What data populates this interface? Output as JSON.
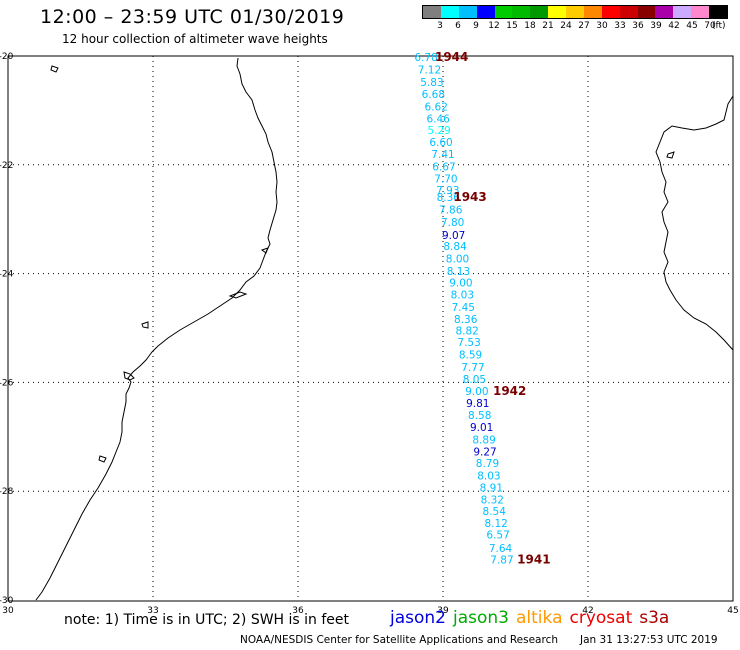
{
  "header": {
    "title": "12:00 – 23:59 UTC 01/30/2019",
    "subtitle": "12 hour collection of altimeter wave heights"
  },
  "colorbar": {
    "colors": [
      "#7f7f7f",
      "#00ffff",
      "#00bfff",
      "#0000ff",
      "#00cc00",
      "#00bb00",
      "#009900",
      "#ffff00",
      "#ffcc00",
      "#ff8800",
      "#ff0000",
      "#cc0000",
      "#880000",
      "#aa00aa",
      "#ccaaff",
      "#ff88cc",
      "#000000"
    ],
    "labels": [
      "3",
      "6",
      "9",
      "12",
      "15",
      "18",
      "21",
      "24",
      "27",
      "30",
      "33",
      "36",
      "39",
      "42",
      "45",
      "70"
    ],
    "unit": "(ft)"
  },
  "map": {
    "lon_ticks": [
      "30",
      "33",
      "36",
      "39",
      "42",
      "45"
    ],
    "lat_ticks": [
      "-20",
      "-22",
      "-24",
      "-26",
      "-28",
      "-30"
    ]
  },
  "chart_data": {
    "type": "scatter",
    "x_range": [
      30,
      45
    ],
    "y_range": [
      -30,
      -20
    ],
    "swh_points": [
      {
        "lon": 38.65,
        "lat": -20.02,
        "v": "6.78",
        "color": "#00bfff"
      },
      {
        "lon": 38.72,
        "lat": -20.25,
        "v": "7.12",
        "color": "#00bfff"
      },
      {
        "lon": 38.77,
        "lat": -20.48,
        "v": "5.83",
        "color": "#00bfff"
      },
      {
        "lon": 38.8,
        "lat": -20.7,
        "v": "6.68",
        "color": "#00bfff"
      },
      {
        "lon": 38.86,
        "lat": -20.93,
        "v": "6.62",
        "color": "#00bfff"
      },
      {
        "lon": 38.9,
        "lat": -21.15,
        "v": "6.46",
        "color": "#00bfff"
      },
      {
        "lon": 38.92,
        "lat": -21.36,
        "v": "5.29",
        "color": "#00ffff"
      },
      {
        "lon": 38.96,
        "lat": -21.58,
        "v": "6.60",
        "color": "#00bfff"
      },
      {
        "lon": 39.0,
        "lat": -21.8,
        "v": "7.41",
        "color": "#00bfff"
      },
      {
        "lon": 39.02,
        "lat": -22.03,
        "v": "6.67",
        "color": "#00bfff"
      },
      {
        "lon": 39.06,
        "lat": -22.25,
        "v": "7.70",
        "color": "#00bfff"
      },
      {
        "lon": 39.1,
        "lat": -22.46,
        "v": "7.93",
        "color": "#00bfff"
      },
      {
        "lon": 39.11,
        "lat": -22.59,
        "v": "8.36",
        "color": "#00bfff"
      },
      {
        "lon": 39.16,
        "lat": -22.82,
        "v": "7.86",
        "color": "#00bfff"
      },
      {
        "lon": 39.2,
        "lat": -23.05,
        "v": "7.80",
        "color": "#00bfff"
      },
      {
        "lon": 39.22,
        "lat": -23.29,
        "v": "9.07",
        "color": "#0000cc"
      },
      {
        "lon": 39.25,
        "lat": -23.49,
        "v": "8.84",
        "color": "#00bfff"
      },
      {
        "lon": 39.3,
        "lat": -23.72,
        "v": "8.00",
        "color": "#00bfff"
      },
      {
        "lon": 39.32,
        "lat": -23.95,
        "v": "8.13",
        "color": "#00bfff"
      },
      {
        "lon": 39.37,
        "lat": -24.16,
        "v": "9.00",
        "color": "#00bfff"
      },
      {
        "lon": 39.4,
        "lat": -24.38,
        "v": "8.03",
        "color": "#00bfff"
      },
      {
        "lon": 39.42,
        "lat": -24.61,
        "v": "7.45",
        "color": "#00bfff"
      },
      {
        "lon": 39.47,
        "lat": -24.83,
        "v": "8.36",
        "color": "#00bfff"
      },
      {
        "lon": 39.5,
        "lat": -25.05,
        "v": "8.82",
        "color": "#00bfff"
      },
      {
        "lon": 39.54,
        "lat": -25.26,
        "v": "7.53",
        "color": "#00bfff"
      },
      {
        "lon": 39.57,
        "lat": -25.49,
        "v": "8.59",
        "color": "#00bfff"
      },
      {
        "lon": 39.62,
        "lat": -25.72,
        "v": "7.77",
        "color": "#00bfff"
      },
      {
        "lon": 39.65,
        "lat": -25.94,
        "v": "8.05",
        "color": "#00bfff"
      },
      {
        "lon": 39.7,
        "lat": -26.16,
        "v": "9.00",
        "color": "#00bfff"
      },
      {
        "lon": 39.72,
        "lat": -26.38,
        "v": "9.81",
        "color": "#0000cc"
      },
      {
        "lon": 39.76,
        "lat": -26.6,
        "v": "8.58",
        "color": "#00bfff"
      },
      {
        "lon": 39.8,
        "lat": -26.82,
        "v": "9.01",
        "color": "#0000cc"
      },
      {
        "lon": 39.85,
        "lat": -27.05,
        "v": "8.89",
        "color": "#00bfff"
      },
      {
        "lon": 39.87,
        "lat": -27.27,
        "v": "9.27",
        "color": "#0000cc"
      },
      {
        "lon": 39.92,
        "lat": -27.48,
        "v": "8.79",
        "color": "#00bfff"
      },
      {
        "lon": 39.95,
        "lat": -27.71,
        "v": "8.03",
        "color": "#00bfff"
      },
      {
        "lon": 40.0,
        "lat": -27.93,
        "v": "8.91",
        "color": "#00bfff"
      },
      {
        "lon": 40.02,
        "lat": -28.15,
        "v": "8.32",
        "color": "#00bfff"
      },
      {
        "lon": 40.06,
        "lat": -28.36,
        "v": "8.54",
        "color": "#00bfff"
      },
      {
        "lon": 40.1,
        "lat": -28.58,
        "v": "8.12",
        "color": "#00bfff"
      },
      {
        "lon": 40.14,
        "lat": -28.8,
        "v": "6.57",
        "color": "#00bfff"
      },
      {
        "lon": 40.19,
        "lat": -29.04,
        "v": "7.64",
        "color": "#00bfff"
      },
      {
        "lon": 40.22,
        "lat": -29.26,
        "v": "7.87",
        "color": "#00bfff"
      }
    ],
    "rev_labels": [
      {
        "lon": 39.18,
        "lat": -20.02,
        "v": "1944"
      },
      {
        "lon": 39.56,
        "lat": -22.59,
        "v": "1943"
      },
      {
        "lon": 40.38,
        "lat": -26.16,
        "v": "1942"
      },
      {
        "lon": 40.88,
        "lat": -29.26,
        "v": "1941"
      }
    ]
  },
  "footer": {
    "note": "note:  1) Time is in UTC;  2) SWH is in feet",
    "satellites": [
      {
        "name": "jason2",
        "color": "#0000dd"
      },
      {
        "name": "jason3",
        "color": "#00aa00"
      },
      {
        "name": "altika",
        "color": "#ff9900"
      },
      {
        "name": "cryosat",
        "color": "#ee0000"
      },
      {
        "name": "s3a",
        "color": "#aa0000"
      }
    ],
    "credit": "NOAA/NESDIS Center for Satellite Applications and Research",
    "timestamp": "Jan 31 13:27:53 UTC 2019"
  }
}
